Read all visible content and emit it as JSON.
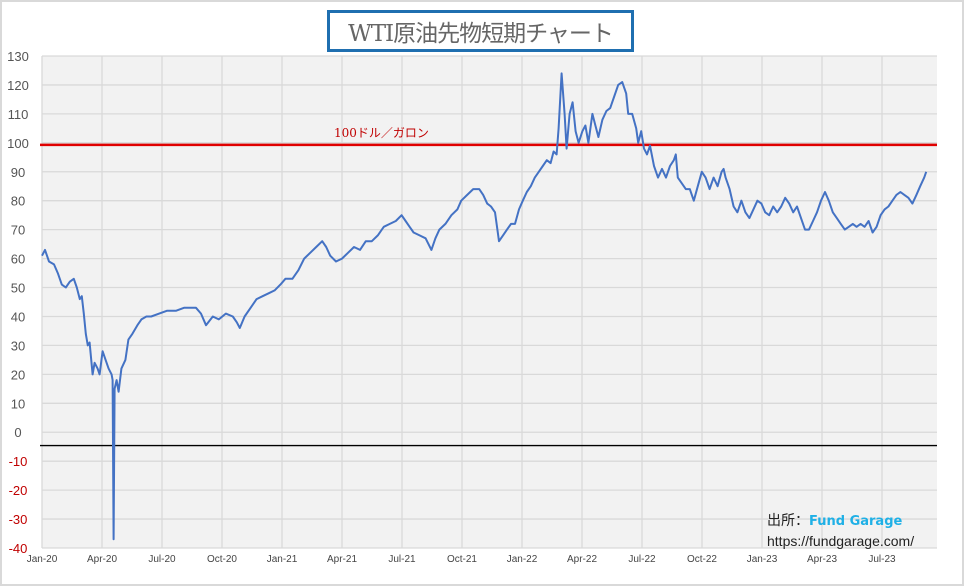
{
  "chart_data": {
    "type": "line",
    "title": "WTI原油先物短期チャート",
    "xlabel": "",
    "ylabel": "",
    "x_unit": "months since Jan-2020",
    "xlim": [
      0,
      44.75
    ],
    "ylim": [
      -40,
      130
    ],
    "y_ticks": [
      130,
      120,
      110,
      100,
      90,
      80,
      70,
      60,
      50,
      40,
      30,
      20,
      10,
      0,
      -10,
      -20,
      -30,
      -40
    ],
    "x_ticks": [
      {
        "x": 0,
        "label": "Jan-20"
      },
      {
        "x": 3,
        "label": "Apr-20"
      },
      {
        "x": 6,
        "label": "Jul-20"
      },
      {
        "x": 9,
        "label": "Oct-20"
      },
      {
        "x": 12,
        "label": "Jan-21"
      },
      {
        "x": 15,
        "label": "Apr-21"
      },
      {
        "x": 18,
        "label": "Jul-21"
      },
      {
        "x": 21,
        "label": "Oct-21"
      },
      {
        "x": 24,
        "label": "Jan-22"
      },
      {
        "x": 27,
        "label": "Apr-22"
      },
      {
        "x": 30,
        "label": "Jul-22"
      },
      {
        "x": 33,
        "label": "Oct-22"
      },
      {
        "x": 36,
        "label": "Jan-23"
      },
      {
        "x": 39,
        "label": "Apr-23"
      },
      {
        "x": 42,
        "label": "Jul-23"
      }
    ],
    "grid": true,
    "negative_tick_color": "#c00000",
    "series": [
      {
        "name": "WTI",
        "color": "#4472c4",
        "x": [
          0,
          0.15,
          0.35,
          0.6,
          0.79,
          0.99,
          1.19,
          1.39,
          1.59,
          1.74,
          1.89,
          1.99,
          2.09,
          2.19,
          2.29,
          2.38,
          2.53,
          2.63,
          2.78,
          2.88,
          3.03,
          3.18,
          3.33,
          3.48,
          3.53,
          3.58,
          3.63,
          3.73,
          3.83,
          3.97,
          4.17,
          4.32,
          4.52,
          4.77,
          4.97,
          5.22,
          5.46,
          5.86,
          6.26,
          6.71,
          7.1,
          7.7,
          7.95,
          8.2,
          8.54,
          8.84,
          9.19,
          9.54,
          9.74,
          9.89,
          10.13,
          10.43,
          10.73,
          11.03,
          11.33,
          11.63,
          11.92,
          12.17,
          12.52,
          12.82,
          13.11,
          13.41,
          13.71,
          14.01,
          14.21,
          14.41,
          14.7,
          15,
          15.3,
          15.6,
          15.9,
          16.19,
          16.49,
          16.79,
          17.09,
          17.39,
          17.69,
          17.98,
          18.18,
          18.38,
          18.58,
          18.88,
          19.18,
          19.47,
          19.67,
          19.87,
          20.17,
          20.47,
          20.77,
          20.96,
          21.26,
          21.56,
          21.86,
          22.06,
          22.26,
          22.45,
          22.65,
          22.85,
          23.05,
          23.25,
          23.45,
          23.65,
          23.85,
          24.04,
          24.24,
          24.44,
          24.64,
          24.84,
          25.04,
          25.24,
          25.43,
          25.58,
          25.73,
          25.83,
          25.98,
          26.13,
          26.23,
          26.38,
          26.53,
          26.68,
          26.83,
          27.02,
          27.17,
          27.32,
          27.52,
          27.67,
          27.82,
          28.02,
          28.22,
          28.41,
          28.61,
          28.81,
          29.01,
          29.21,
          29.31,
          29.51,
          29.71,
          29.81,
          29.96,
          30.1,
          30.25,
          30.4,
          30.6,
          30.8,
          31,
          31.2,
          31.4,
          31.59,
          31.69,
          31.79,
          31.99,
          32.19,
          32.39,
          32.59,
          32.79,
          32.99,
          33.18,
          33.38,
          33.58,
          33.78,
          33.98,
          34.08,
          34.18,
          34.38,
          34.58,
          34.77,
          34.97,
          35.17,
          35.37,
          35.57,
          35.77,
          35.97,
          36.16,
          36.36,
          36.56,
          36.76,
          36.96,
          37.16,
          37.36,
          37.56,
          37.75,
          37.95,
          38.15,
          38.35,
          38.55,
          38.75,
          38.95,
          39.15,
          39.34,
          39.54,
          39.74,
          39.94,
          40.14,
          40.34,
          40.54,
          40.73,
          40.93,
          41.13,
          41.33,
          41.53,
          41.73,
          41.93,
          42.13,
          42.32,
          42.52,
          42.72,
          42.92,
          43.12,
          43.32,
          43.52,
          43.72,
          43.91,
          44.11,
          44.21
        ],
        "y": [
          61,
          63,
          59,
          58,
          55,
          51,
          50,
          52,
          53,
          50,
          46,
          47,
          41,
          34,
          30,
          31,
          20,
          24,
          22,
          20,
          28,
          25,
          22,
          20,
          18,
          -37,
          15,
          18,
          14,
          22,
          25,
          32,
          34,
          37,
          39,
          40,
          40,
          41,
          42,
          42,
          43,
          43,
          41,
          37,
          40,
          39,
          41,
          40,
          38,
          36,
          40,
          43,
          46,
          47,
          48,
          49,
          51,
          53,
          53,
          56,
          60,
          62,
          64,
          66,
          64,
          61,
          59,
          60,
          62,
          64,
          63,
          66,
          66,
          68,
          71,
          72,
          73,
          75,
          73,
          71,
          69,
          68,
          67,
          63,
          67,
          70,
          72,
          75,
          77,
          80,
          82,
          84,
          84,
          82,
          79,
          78,
          76,
          66,
          68,
          70,
          72,
          72,
          77,
          80,
          83,
          85,
          88,
          90,
          92,
          94,
          93,
          97,
          96,
          105,
          124,
          110,
          98,
          110,
          114,
          104,
          100,
          104,
          106,
          100,
          110,
          106,
          102,
          108,
          111,
          112,
          116,
          120,
          121,
          117,
          110,
          110,
          105,
          100,
          104,
          98,
          96,
          99,
          92,
          88,
          91,
          88,
          92,
          94,
          96,
          88,
          86,
          84,
          84,
          80,
          85,
          90,
          88,
          84,
          88,
          85,
          90,
          91,
          88,
          84,
          78,
          76,
          80,
          76,
          74,
          77,
          80,
          79,
          76,
          75,
          78,
          76,
          78,
          81,
          79,
          76,
          78,
          74,
          70,
          70,
          73,
          76,
          80,
          83,
          80,
          76,
          74,
          72,
          70,
          71,
          72,
          71,
          72,
          71,
          73,
          69,
          71,
          75,
          77,
          78,
          80,
          82,
          83,
          82,
          81,
          79,
          82,
          85,
          88,
          90
        ]
      }
    ],
    "reference_lines": [
      {
        "value": 99.3,
        "color": "#e00000",
        "label": "100ドル／ガロン"
      },
      {
        "value": -4.6,
        "color": "#000000",
        "label": ""
      }
    ],
    "annotation": {
      "source_prefix": "出所：",
      "source_brand": "Fund Garage",
      "source_url": "https://fundgarage.com/"
    }
  }
}
